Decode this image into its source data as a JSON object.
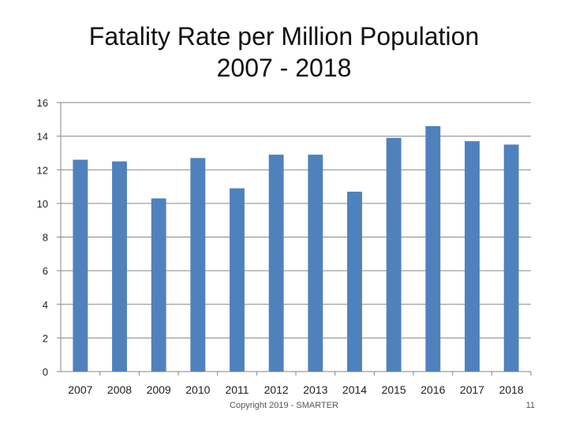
{
  "title_line1": "Fatality Rate per Million Population",
  "title_line2": "2007 - 2018",
  "footer": {
    "copyright": "Copyright 2019 - SMARTER",
    "page_number": "11"
  },
  "colors": {
    "bar": "#4F81BD",
    "grid": "#868686"
  },
  "chart_data": {
    "type": "bar",
    "title": "Fatality Rate per Million Population 2007 - 2018",
    "categories": [
      "2007",
      "2008",
      "2009",
      "2010",
      "2011",
      "2012",
      "2013",
      "2014",
      "2015",
      "2016",
      "2017",
      "2018"
    ],
    "values": [
      12.6,
      12.5,
      10.3,
      12.7,
      10.9,
      12.9,
      12.9,
      10.7,
      13.9,
      14.6,
      13.7,
      13.5
    ],
    "ylim": [
      0,
      16
    ],
    "yticks": [
      0,
      2,
      4,
      6,
      8,
      10,
      12,
      14,
      16
    ],
    "xlabel": "",
    "ylabel": "",
    "grid": true
  }
}
